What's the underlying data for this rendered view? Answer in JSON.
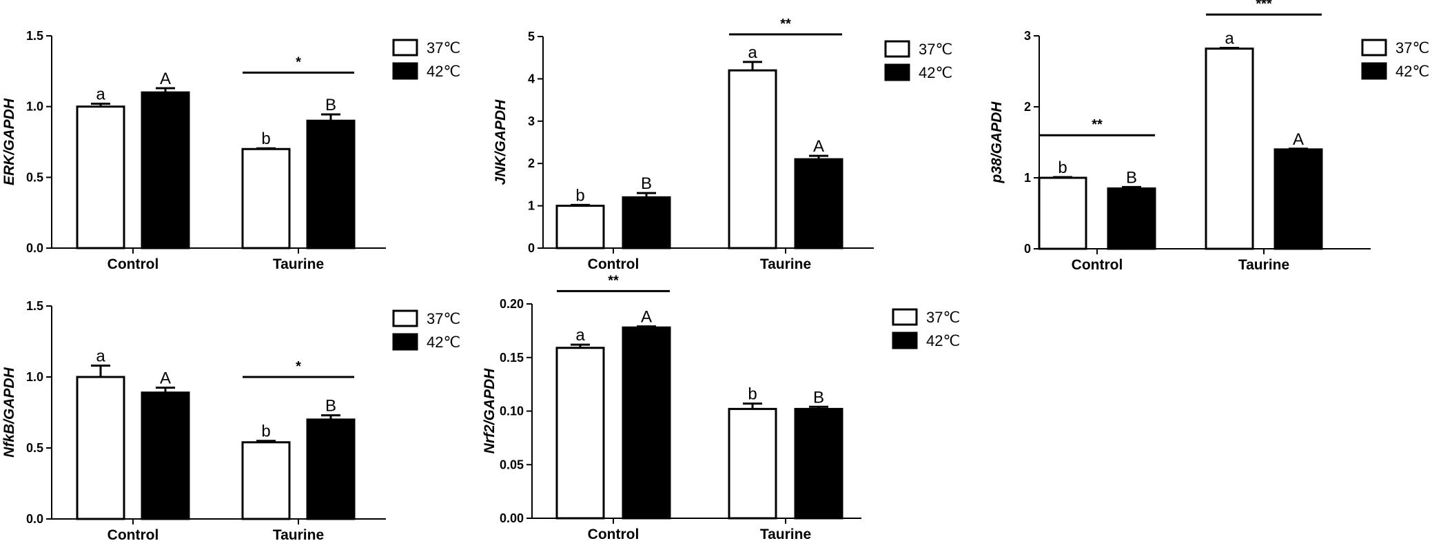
{
  "chart_data": [
    {
      "type": "bar",
      "ylabel": "ERK/GAPDH",
      "categories": [
        "Control",
        "Taurine"
      ],
      "series": [
        {
          "name": "37℃",
          "values": [
            1.0,
            0.7
          ],
          "errors": [
            0.02,
            0.005
          ],
          "letters": [
            "a",
            "b"
          ],
          "color": "#ffffff"
        },
        {
          "name": "42℃",
          "values": [
            1.1,
            0.9
          ],
          "errors": [
            0.03,
            0.045
          ],
          "letters": [
            "A",
            "B"
          ],
          "color": "#000000"
        }
      ],
      "ylim": [
        0,
        1.5
      ],
      "yticks": [
        "0.0",
        "0.5",
        "1.0",
        "1.5"
      ],
      "ytick_values": [
        0,
        0.5,
        1.0,
        1.5
      ],
      "significance": [
        {
          "category": "Taurine",
          "label": "*",
          "level": 1.24
        }
      ]
    },
    {
      "type": "bar",
      "ylabel": "JNK/GAPDH",
      "categories": [
        "Control",
        "Taurine"
      ],
      "series": [
        {
          "name": "37℃",
          "values": [
            1.0,
            4.2
          ],
          "errors": [
            0.02,
            0.2
          ],
          "letters": [
            "b",
            "a"
          ],
          "color": "#ffffff"
        },
        {
          "name": "42℃",
          "values": [
            1.2,
            2.1
          ],
          "errors": [
            0.1,
            0.08
          ],
          "letters": [
            "B",
            "A"
          ],
          "color": "#000000"
        }
      ],
      "ylim": [
        0,
        5
      ],
      "yticks": [
        "0",
        "1",
        "2",
        "3",
        "4",
        "5"
      ],
      "ytick_values": [
        0,
        1,
        2,
        3,
        4,
        5
      ],
      "significance": [
        {
          "category": "Taurine",
          "label": "**",
          "level": 5.05
        }
      ]
    },
    {
      "type": "bar",
      "ylabel": "p38/GAPDH",
      "categories": [
        "Control",
        "Taurine"
      ],
      "series": [
        {
          "name": "37℃",
          "values": [
            1.0,
            2.82
          ],
          "errors": [
            0.01,
            0.01
          ],
          "letters": [
            "b",
            "a"
          ],
          "color": "#ffffff"
        },
        {
          "name": "42℃",
          "values": [
            0.85,
            1.4
          ],
          "errors": [
            0.02,
            0.01
          ],
          "letters": [
            "B",
            "A"
          ],
          "color": "#000000"
        }
      ],
      "ylim": [
        0,
        3
      ],
      "yticks": [
        "0",
        "1",
        "2",
        "3"
      ],
      "ytick_values": [
        0,
        1,
        2,
        3
      ],
      "significance": [
        {
          "category": "Control",
          "label": "**",
          "level": 1.6
        },
        {
          "category": "Taurine",
          "label": "***",
          "level": 3.3
        }
      ]
    },
    {
      "type": "bar",
      "ylabel": "NfkB/GAPDH",
      "categories": [
        "Control",
        "Taurine"
      ],
      "series": [
        {
          "name": "37℃",
          "values": [
            1.0,
            0.54
          ],
          "errors": [
            0.08,
            0.01
          ],
          "letters": [
            "a",
            "b"
          ],
          "color": "#ffffff"
        },
        {
          "name": "42℃",
          "values": [
            0.89,
            0.7
          ],
          "errors": [
            0.035,
            0.03
          ],
          "letters": [
            "A",
            "B"
          ],
          "color": "#000000"
        }
      ],
      "ylim": [
        0,
        1.5
      ],
      "yticks": [
        "0.0",
        "0.5",
        "1.0",
        "1.5"
      ],
      "ytick_values": [
        0,
        0.5,
        1.0,
        1.5
      ],
      "significance": [
        {
          "category": "Taurine",
          "label": "*",
          "level": 1.0
        }
      ]
    },
    {
      "type": "bar",
      "ylabel": "Nrf2/GAPDH",
      "categories": [
        "Control",
        "Taurine"
      ],
      "series": [
        {
          "name": "37℃",
          "values": [
            0.159,
            0.102
          ],
          "errors": [
            0.003,
            0.005
          ],
          "letters": [
            "a",
            "b"
          ],
          "color": "#ffffff"
        },
        {
          "name": "42℃",
          "values": [
            0.178,
            0.102
          ],
          "errors": [
            0.001,
            0.002
          ],
          "letters": [
            "A",
            "B"
          ],
          "color": "#000000"
        }
      ],
      "ylim": [
        0,
        0.2
      ],
      "yticks": [
        "0.00",
        "0.05",
        "0.10",
        "0.15",
        "0.20"
      ],
      "ytick_values": [
        0,
        0.05,
        0.1,
        0.15,
        0.2
      ],
      "significance": [
        {
          "category": "Control",
          "label": "**",
          "level": 0.212
        }
      ]
    }
  ]
}
